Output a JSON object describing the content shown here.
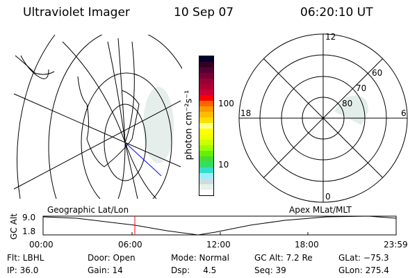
{
  "header": {
    "instrument": "Ultraviolet Imager",
    "date": "10 Sep 07",
    "time": "06:20:10 UT"
  },
  "colorbar": {
    "label": "photon cm⁻²s⁻¹",
    "ticks": [
      "100",
      "10"
    ],
    "colors": [
      "#000033",
      "#330022",
      "#550033",
      "#770033",
      "#990033",
      "#aa0033",
      "#cc0033",
      "#ff0000",
      "#ff6600",
      "#ff9900",
      "#ffbb00",
      "#ffdd00",
      "#ffff88",
      "#ffff00",
      "#eeff00",
      "#ccff00",
      "#99ff00",
      "#66ee00",
      "#44dd33",
      "#33dd66",
      "#33ddcc",
      "#99eeff",
      "#ccdddd",
      "#e8f0ec",
      "#ffffff"
    ]
  },
  "polar": {
    "mlt_labels": {
      "top": "12",
      "left": "18",
      "right": "6",
      "bottom": "0"
    },
    "lat_labels": [
      "60",
      "70",
      "80"
    ]
  },
  "timeline": {
    "left_title": "Geographic Lat/Lon",
    "right_title": "Apex MLat/MLT",
    "ylabel": "GC Alt",
    "y_ticks": [
      "9.0",
      "1.8"
    ],
    "x_ticks": [
      "00:00",
      "06:00",
      "12:00",
      "18:00",
      "23:59"
    ],
    "current_marker_color": "#ff0000",
    "track_color": "#0000ff"
  },
  "status": {
    "flt": "Flt: LBHL",
    "ip": "IP: 36.0",
    "door": "Door: Open",
    "gain": "Gain: 14",
    "mode": "Mode: Normal",
    "dsp": "Dsp:     4.5",
    "gc_alt": "GC Alt: 7.2 Re",
    "seq": "Seq: 39",
    "glat": "GLat: −75.3",
    "glon": "GLon: 275.4"
  }
}
